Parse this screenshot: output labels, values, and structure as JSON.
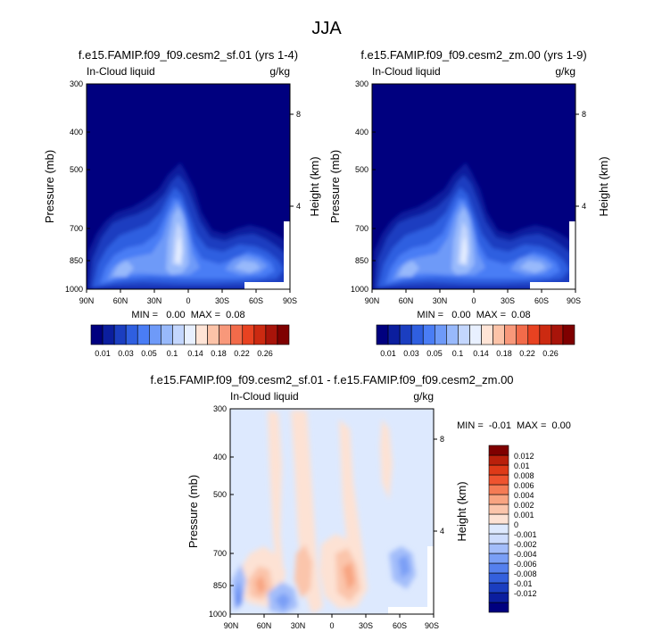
{
  "page": {
    "title": "JJA"
  },
  "colors": {
    "abs_scale": [
      "#00007f",
      "#0b1e9e",
      "#1b3ec0",
      "#2f5fe0",
      "#4a7df5",
      "#6e9af8",
      "#98b9fb",
      "#c3d6fd",
      "#e8f0ff",
      "#ffe4d6",
      "#fcc3a8",
      "#f8987a",
      "#f26b4a",
      "#e84221",
      "#cc2a11",
      "#a8140a",
      "#7f0000"
    ],
    "diff_scale": [
      "#00007f",
      "#0b1e9e",
      "#1b3ec0",
      "#3460dd",
      "#5580ee",
      "#7a9ff6",
      "#a3bdfa",
      "#cddcfd",
      "#dde9fe",
      "#fde2d4",
      "#fbc5ab",
      "#f8a481",
      "#f47b55",
      "#ee532f",
      "#de3a18",
      "#b9200b",
      "#7f0000"
    ]
  },
  "chart_data": [
    {
      "type": "heatmap",
      "panel": "top-left",
      "title": "f.e15.FAMIP.f09_f09.cesm2_sf.01 (yrs 1-4)",
      "left_label": "In-Cloud liquid",
      "right_label": "g/kg",
      "ylabel": "Pressure (mb)",
      "y2label": "Height (km)",
      "x_ticks": [
        "90N",
        "60N",
        "30N",
        "0",
        "30S",
        "60S",
        "90S"
      ],
      "y_ticks": [
        "300",
        "400",
        "500",
        "700",
        "850",
        "1000"
      ],
      "y2_ticks": [
        "8",
        "4"
      ],
      "stats": "MIN =   0.00  MAX =  0.08",
      "legend_labels": [
        "0.01",
        "0.03",
        "0.05",
        "0.1",
        "0.14",
        "0.18",
        "0.22",
        "0.26"
      ],
      "peaks": [
        {
          "lat": 8,
          "p": 790,
          "value": 0.08
        },
        {
          "lat": -40,
          "p": 860,
          "value": 0.06
        },
        {
          "lat": 70,
          "p": 840,
          "value": 0.06
        },
        {
          "lat": -5,
          "p": 540,
          "value": 0.02
        }
      ]
    },
    {
      "type": "heatmap",
      "panel": "top-right",
      "title": "f.e15.FAMIP.f09_f09.cesm2_zm.00 (yrs 1-9)",
      "left_label": "In-Cloud liquid",
      "right_label": "g/kg",
      "ylabel": "Pressure (mb)",
      "y2label": "Height (km)",
      "x_ticks": [
        "90N",
        "60N",
        "30N",
        "0",
        "30S",
        "60S",
        "90S"
      ],
      "y_ticks": [
        "300",
        "400",
        "500",
        "700",
        "850",
        "1000"
      ],
      "y2_ticks": [
        "8",
        "4"
      ],
      "stats": "MIN =   0.00  MAX =  0.08",
      "legend_labels": [
        "0.01",
        "0.03",
        "0.05",
        "0.1",
        "0.14",
        "0.18",
        "0.22",
        "0.26"
      ],
      "peaks": [
        {
          "lat": 8,
          "p": 790,
          "value": 0.08
        },
        {
          "lat": -40,
          "p": 860,
          "value": 0.06
        },
        {
          "lat": 70,
          "p": 840,
          "value": 0.06
        },
        {
          "lat": -5,
          "p": 540,
          "value": 0.02
        }
      ]
    },
    {
      "type": "heatmap",
      "panel": "bottom",
      "title": "f.e15.FAMIP.f09_f09.cesm2_sf.01 - f.e15.FAMIP.f09_f09.cesm2_zm.00",
      "left_label": "In-Cloud liquid",
      "right_label": "g/kg",
      "ylabel": "Pressure (mb)",
      "y2label": "Height (km)",
      "x_ticks": [
        "90N",
        "60N",
        "30N",
        "0",
        "30S",
        "60S",
        "90S"
      ],
      "y_ticks": [
        "300",
        "400",
        "500",
        "700",
        "850",
        "1000"
      ],
      "y2_ticks": [
        "8",
        "4"
      ],
      "stats": "MIN =  -0.01  MAX =  0.00",
      "legend_labels": [
        "0.012",
        "0.01",
        "0.008",
        "0.006",
        "0.004",
        "0.002",
        "0.001",
        "0",
        "-0.001",
        "-0.002",
        "-0.004",
        "-0.006",
        "-0.008",
        "-0.01",
        "-0.012"
      ]
    }
  ]
}
